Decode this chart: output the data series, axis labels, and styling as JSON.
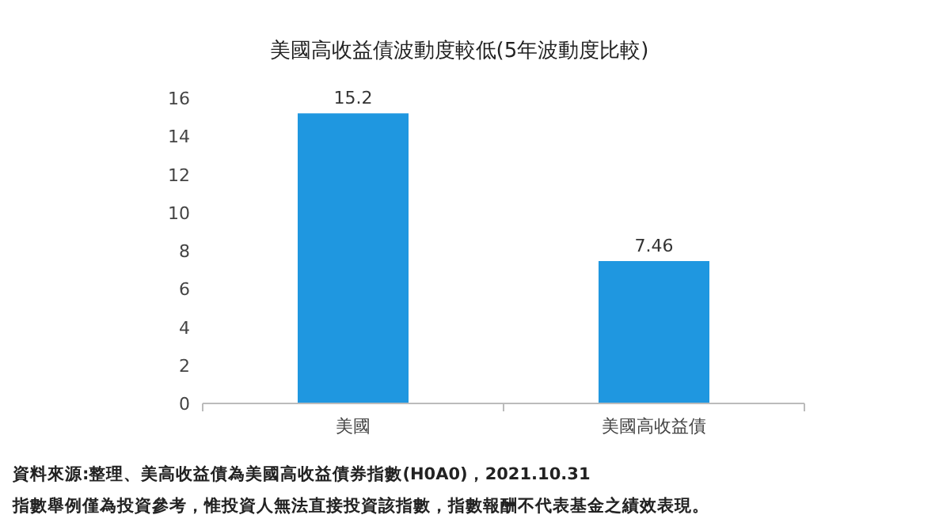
{
  "chart_data": {
    "type": "bar",
    "title": "美國高收益債波動度較低(5年波動度比較)",
    "categories": [
      "美國",
      "美國高收益債"
    ],
    "values": [
      15.2,
      7.46
    ],
    "color": "#1f97e0",
    "ylim": [
      0,
      16
    ],
    "yticks": [
      0,
      2,
      4,
      6,
      8,
      10,
      12,
      14,
      16
    ],
    "grid": false,
    "data_labels": true,
    "annotations": [
      "資料來源:整理、美高收益債為美國高收益債券指數(H0A0)，2021.10.31",
      "指數舉例僅為投資參考，惟投資人無法直接投資該指數，指數報酬不代表基金之績效表現。"
    ]
  }
}
